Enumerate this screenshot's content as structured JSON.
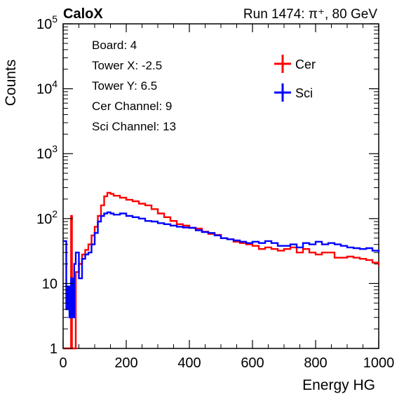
{
  "header": {
    "left": "CaloX",
    "right": "Run 1474:   π⁺, 80 GeV"
  },
  "info_box": {
    "lines": [
      "Board: 4",
      "Tower X: -2.5",
      "Tower Y: 6.5",
      "Cer Channel: 9",
      "Sci Channel: 13"
    ]
  },
  "colors": {
    "cer": "#ff0000",
    "sci": "#0000ff",
    "axis": "#000000"
  },
  "chart_data": {
    "type": "line",
    "xlabel": "Energy HG",
    "ylabel": "Counts",
    "xlim": [
      0,
      1000
    ],
    "ylim": [
      1,
      100000
    ],
    "yscale": "log",
    "x_ticks": [
      0,
      200,
      400,
      600,
      800,
      1000
    ],
    "x_tick_labels": [
      "0",
      "200",
      "400",
      "600",
      "800",
      "1000"
    ],
    "y_ticks": [
      1,
      10,
      100,
      1000,
      10000,
      100000
    ],
    "y_tick_labels": [
      "1",
      "10",
      "10^2",
      "10^3",
      "10^4",
      "10^5"
    ],
    "legend": {
      "placement": "top-right"
    },
    "series": [
      {
        "name": "Cer",
        "color": "#ff0000",
        "points": [
          [
            0,
            1
          ],
          [
            20,
            1
          ],
          [
            25,
            110
          ],
          [
            28,
            1
          ],
          [
            32,
            1
          ],
          [
            40,
            15
          ],
          [
            50,
            20
          ],
          [
            60,
            28
          ],
          [
            70,
            33
          ],
          [
            80,
            40
          ],
          [
            90,
            55
          ],
          [
            100,
            75
          ],
          [
            110,
            110
          ],
          [
            120,
            160
          ],
          [
            130,
            220
          ],
          [
            140,
            250
          ],
          [
            150,
            240
          ],
          [
            160,
            225
          ],
          [
            180,
            210
          ],
          [
            200,
            195
          ],
          [
            220,
            185
          ],
          [
            240,
            170
          ],
          [
            260,
            160
          ],
          [
            280,
            140
          ],
          [
            300,
            120
          ],
          [
            320,
            105
          ],
          [
            340,
            92
          ],
          [
            360,
            82
          ],
          [
            380,
            78
          ],
          [
            400,
            72
          ],
          [
            420,
            70
          ],
          [
            440,
            63
          ],
          [
            460,
            58
          ],
          [
            480,
            56
          ],
          [
            500,
            50
          ],
          [
            520,
            48
          ],
          [
            540,
            44
          ],
          [
            560,
            42
          ],
          [
            580,
            40
          ],
          [
            600,
            38
          ],
          [
            620,
            34
          ],
          [
            640,
            36
          ],
          [
            660,
            34
          ],
          [
            680,
            32
          ],
          [
            700,
            34
          ],
          [
            720,
            36
          ],
          [
            740,
            30
          ],
          [
            760,
            34
          ],
          [
            780,
            30
          ],
          [
            800,
            28
          ],
          [
            820,
            30
          ],
          [
            840,
            30
          ],
          [
            860,
            25
          ],
          [
            880,
            25
          ],
          [
            900,
            26
          ],
          [
            920,
            25
          ],
          [
            940,
            24
          ],
          [
            960,
            23
          ],
          [
            980,
            21
          ],
          [
            1000,
            19
          ]
        ]
      },
      {
        "name": "Sci",
        "color": "#0000ff",
        "points": [
          [
            0,
            45
          ],
          [
            10,
            4
          ],
          [
            15,
            9
          ],
          [
            20,
            3
          ],
          [
            25,
            12
          ],
          [
            30,
            3
          ],
          [
            35,
            20
          ],
          [
            40,
            30
          ],
          [
            50,
            12
          ],
          [
            60,
            24
          ],
          [
            70,
            28
          ],
          [
            80,
            30
          ],
          [
            90,
            40
          ],
          [
            100,
            60
          ],
          [
            110,
            90
          ],
          [
            120,
            110
          ],
          [
            130,
            120
          ],
          [
            140,
            125
          ],
          [
            150,
            120
          ],
          [
            160,
            115
          ],
          [
            180,
            120
          ],
          [
            200,
            110
          ],
          [
            220,
            105
          ],
          [
            240,
            100
          ],
          [
            260,
            92
          ],
          [
            280,
            90
          ],
          [
            300,
            85
          ],
          [
            320,
            82
          ],
          [
            340,
            78
          ],
          [
            360,
            75
          ],
          [
            380,
            73
          ],
          [
            400,
            72
          ],
          [
            420,
            66
          ],
          [
            440,
            62
          ],
          [
            460,
            60
          ],
          [
            480,
            55
          ],
          [
            500,
            50
          ],
          [
            520,
            48
          ],
          [
            540,
            46
          ],
          [
            560,
            44
          ],
          [
            580,
            42
          ],
          [
            600,
            44
          ],
          [
            620,
            42
          ],
          [
            640,
            45
          ],
          [
            660,
            42
          ],
          [
            680,
            38
          ],
          [
            700,
            38
          ],
          [
            720,
            40
          ],
          [
            740,
            36
          ],
          [
            760,
            42
          ],
          [
            780,
            40
          ],
          [
            800,
            44
          ],
          [
            820,
            40
          ],
          [
            840,
            42
          ],
          [
            860,
            40
          ],
          [
            880,
            38
          ],
          [
            900,
            36
          ],
          [
            920,
            35
          ],
          [
            940,
            34
          ],
          [
            960,
            35
          ],
          [
            980,
            32
          ],
          [
            1000,
            30
          ]
        ]
      }
    ]
  }
}
